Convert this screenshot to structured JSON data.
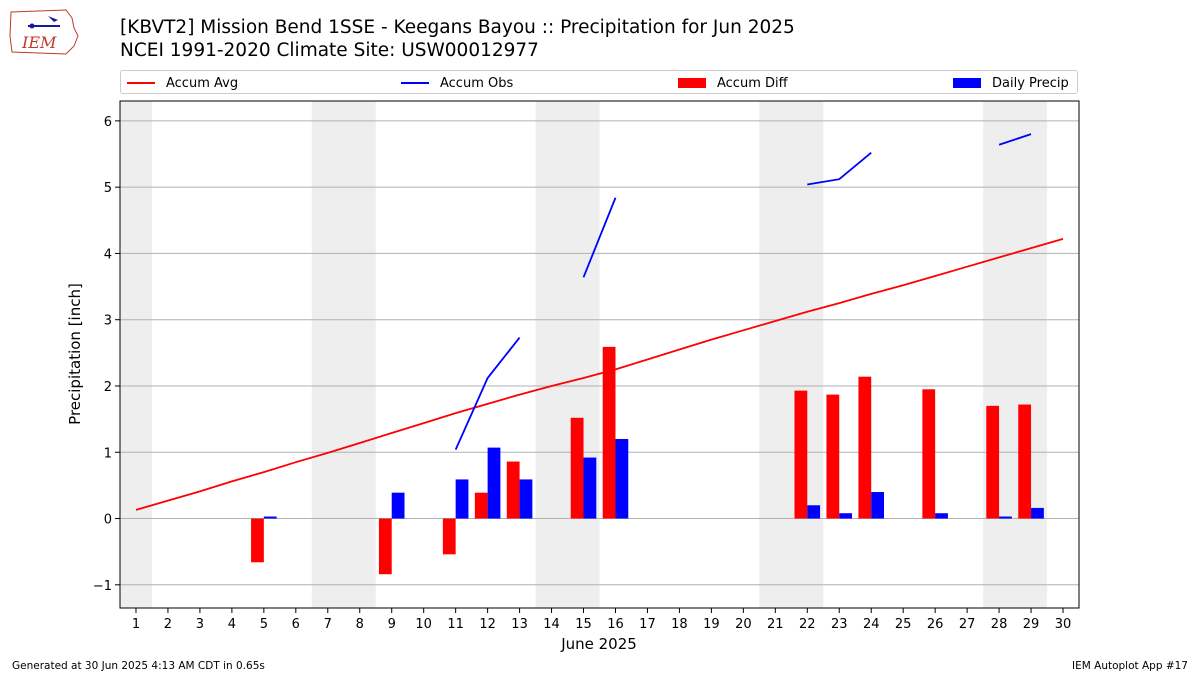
{
  "logo": {
    "text": "IEM",
    "color": "#c0392b"
  },
  "title": {
    "line1": "[KBVT2] Mission Bend 1SSE - Keegans Bayou :: Precipitation for Jun 2025",
    "line2": "NCEI 1991-2020 Climate Site: USW00012977"
  },
  "footer": {
    "left": "Generated at 30 Jun 2025 4:13 AM CDT in 0.65s",
    "right": "IEM Autoplot App #17"
  },
  "chart_data": {
    "type": "bar",
    "xlabel": "June 2025",
    "ylabel": "Precipitation [inch]",
    "ylim": [
      -1.35,
      6.3
    ],
    "xlim": [
      0.5,
      30.5
    ],
    "yticks": [
      -1,
      0,
      1,
      2,
      3,
      4,
      5,
      6
    ],
    "ytick_labels": [
      "−1",
      "0",
      "1",
      "2",
      "3",
      "4",
      "5",
      "6"
    ],
    "days": [
      1,
      2,
      3,
      4,
      5,
      6,
      7,
      8,
      9,
      10,
      11,
      12,
      13,
      14,
      15,
      16,
      17,
      18,
      19,
      20,
      21,
      22,
      23,
      24,
      25,
      26,
      27,
      28,
      29,
      30
    ],
    "weekend_bands": [
      [
        0.5,
        1.5
      ],
      [
        6.5,
        8.5
      ],
      [
        13.5,
        15.5
      ],
      [
        20.5,
        22.5
      ],
      [
        27.5,
        29.5
      ]
    ],
    "grid": "y",
    "legend_placement": "top",
    "legend": [
      {
        "label": "Accum Avg",
        "kind": "line",
        "color": "#ff0000"
      },
      {
        "label": "Accum Obs",
        "kind": "line",
        "color": "#0000ff"
      },
      {
        "label": "Accum Diff",
        "kind": "bar",
        "color": "#ff0000"
      },
      {
        "label": "Daily Precip",
        "kind": "bar",
        "color": "#0000ff"
      }
    ],
    "series": [
      {
        "name": "Accum Avg",
        "color": "#ff0000",
        "x": [
          1,
          2,
          3,
          4,
          5,
          6,
          7,
          8,
          9,
          10,
          11,
          12,
          13,
          14,
          15,
          16,
          17,
          18,
          19,
          20,
          21,
          22,
          23,
          24,
          25,
          26,
          27,
          28,
          29,
          30
        ],
        "values": [
          0.13,
          0.27,
          0.41,
          0.56,
          0.7,
          0.85,
          0.99,
          1.14,
          1.29,
          1.44,
          1.59,
          1.73,
          1.87,
          2.0,
          2.12,
          2.25,
          2.4,
          2.55,
          2.7,
          2.84,
          2.98,
          3.12,
          3.25,
          3.39,
          3.52,
          3.66,
          3.8,
          3.94,
          4.08,
          4.22
        ]
      },
      {
        "name": "Accum Obs",
        "color": "#0000ff",
        "segments": [
          {
            "x": [
              11,
              12,
              13
            ],
            "values": [
              1.04,
              2.12,
              2.73
            ]
          },
          {
            "x": [
              15,
              16
            ],
            "values": [
              3.64,
              4.84
            ]
          },
          {
            "x": [
              22,
              23,
              24
            ],
            "values": [
              5.04,
              5.12,
              5.52
            ]
          },
          {
            "x": [
              28,
              29
            ],
            "values": [
              5.64,
              5.8
            ]
          }
        ]
      },
      {
        "name": "Accum Diff",
        "color": "#ff0000",
        "x": [
          5,
          9,
          11,
          12,
          13,
          15,
          16,
          22,
          23,
          24,
          26,
          28,
          29
        ],
        "values": [
          -0.66,
          -0.84,
          -0.54,
          0.39,
          0.86,
          1.52,
          2.59,
          1.93,
          1.87,
          2.14,
          1.95,
          1.7,
          1.72
        ]
      },
      {
        "name": "Daily Precip",
        "color": "#0000ff",
        "x": [
          5,
          9,
          11,
          12,
          13,
          15,
          16,
          22,
          23,
          24,
          26,
          28,
          29
        ],
        "values": [
          0.03,
          0.39,
          0.59,
          1.07,
          0.59,
          0.92,
          1.2,
          0.2,
          0.08,
          0.4,
          0.08,
          0.03,
          0.16
        ]
      }
    ]
  }
}
